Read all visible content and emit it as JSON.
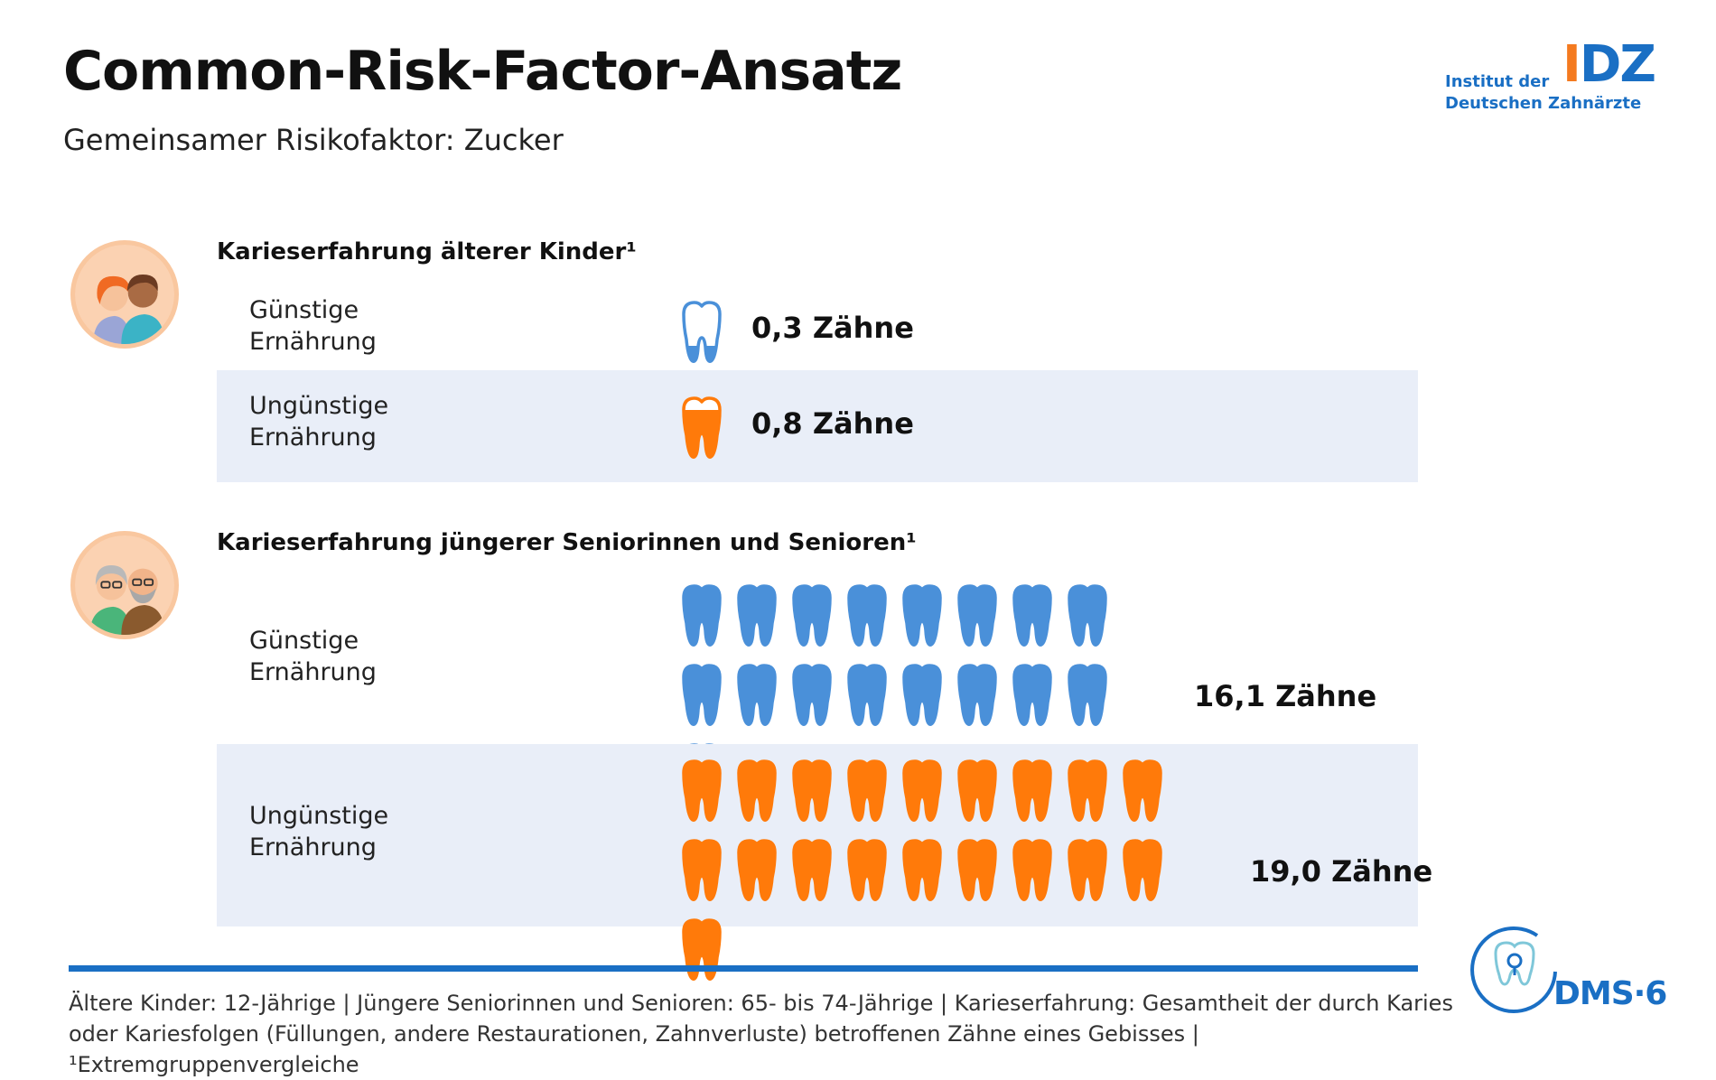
{
  "header": {
    "title": "Common-Risk-Factor-Ansatz",
    "subtitle": "Gemeinsamer Risikofaktor: Zucker"
  },
  "logo_idz": {
    "line1": "Institut der",
    "line2": "Deutschen Zahnärzte",
    "mark_i": "I",
    "mark_dz": "DZ"
  },
  "logo_dms": {
    "text": "DMS·6"
  },
  "colors": {
    "favorable": "#4a90d9",
    "unfavorable": "#ff7a0a",
    "row_highlight": "#e9eef8",
    "rule": "#1a6fc4"
  },
  "chart_data": {
    "type": "pictogram",
    "unit": "Zähne",
    "groups": [
      {
        "title": "Karieserfahrung älterer Kinder¹",
        "icon": "children-icon",
        "rows": [
          {
            "label_line1": "Günstige",
            "label_line2": "Ernährung",
            "value": 0.3,
            "value_label": "0,3 Zähne",
            "color": "#4a90d9"
          },
          {
            "label_line1": "Ungünstige",
            "label_line2": "Ernährung",
            "value": 0.8,
            "value_label": "0,8 Zähne",
            "color": "#ff7a0a"
          }
        ]
      },
      {
        "title": "Karieserfahrung jüngerer Seniorinnen und Senioren¹",
        "icon": "seniors-icon",
        "rows": [
          {
            "label_line1": "Günstige",
            "label_line2": "Ernährung",
            "value": 16.1,
            "value_label": "16,1 Zähne",
            "color": "#4a90d9"
          },
          {
            "label_line1": "Ungünstige",
            "label_line2": "Ernährung",
            "value": 19.0,
            "value_label": "19,0 Zähne",
            "color": "#ff7a0a"
          }
        ]
      }
    ]
  },
  "footnote": {
    "line1": "Ältere Kinder: 12-Jährige | Jüngere Seniorinnen und Senioren: 65- bis 74-Jährige | Karieserfahrung: Gesamtheit der durch Karies",
    "line2": "oder Kariesfolgen (Füllungen, andere Restaurationen, Zahnverluste) betroffenen Zähne eines Gebisses | ¹Extremgruppenvergleiche"
  }
}
